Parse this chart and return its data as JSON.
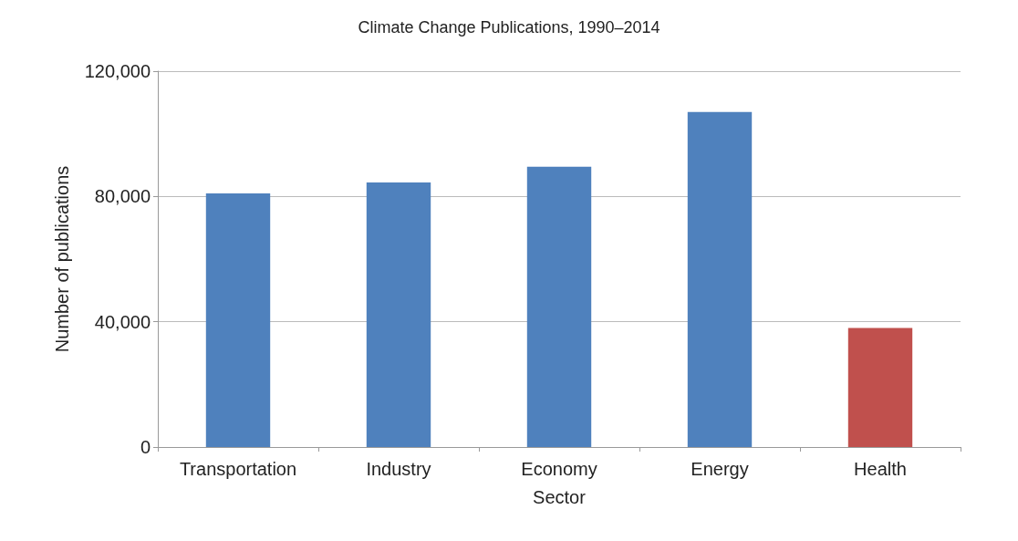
{
  "chart_data": {
    "type": "bar",
    "title": "Climate Change Publications, 1990–2014",
    "xlabel": "Sector",
    "ylabel": "Number of publications",
    "categories": [
      "Transportation",
      "Industry",
      "Economy",
      "Energy",
      "Health"
    ],
    "values": [
      81000,
      84500,
      89500,
      107000,
      38000
    ],
    "colors": [
      "#4f81bd",
      "#4f81bd",
      "#4f81bd",
      "#4f81bd",
      "#c0504d"
    ],
    "ylim": [
      0,
      120000
    ],
    "yticks": [
      {
        "value": 0,
        "label": "0"
      },
      {
        "value": 40000,
        "label": "40,000"
      },
      {
        "value": 80000,
        "label": "80,000"
      },
      {
        "value": 120000,
        "label": "120,000"
      }
    ],
    "grid": "y"
  }
}
